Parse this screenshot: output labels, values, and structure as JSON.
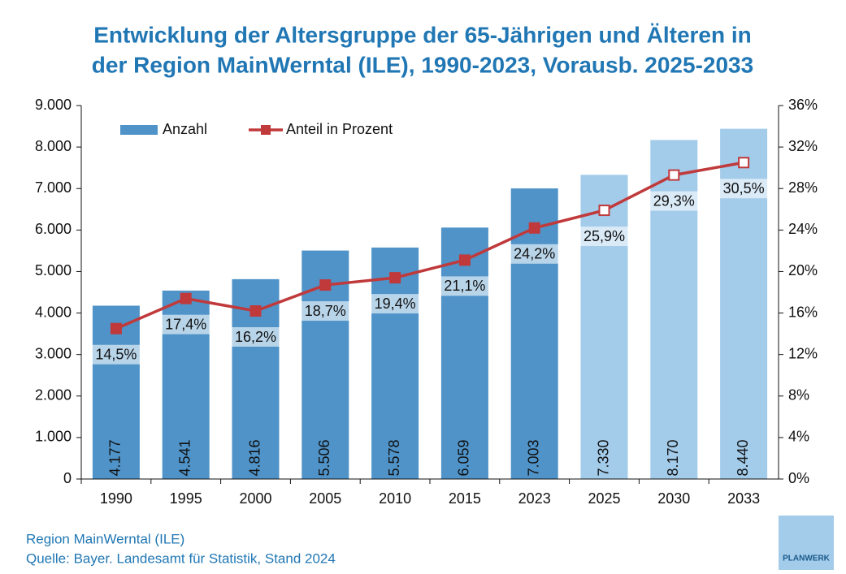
{
  "chart_data": {
    "type": "bar_line",
    "title": [
      "Entwicklung der Altersgruppe der 65-Jährigen und Älteren in",
      "der Region MainWerntal (ILE), 1990-2023, Vorausb. 2025-2033"
    ],
    "categories": [
      "1990",
      "1995",
      "2000",
      "2005",
      "2010",
      "2015",
      "2023",
      "2025",
      "2030",
      "2033"
    ],
    "series": [
      {
        "name": "Anzahl",
        "type": "bar",
        "color": "#4f93c8",
        "colors": [
          "#4f93c8",
          "#4f93c8",
          "#4f93c8",
          "#4f93c8",
          "#4f93c8",
          "#4f93c8",
          "#4f93c8",
          "#a3cbea",
          "#a3cbea",
          "#a3cbea"
        ],
        "values": [
          4177,
          4541,
          4816,
          5506,
          5578,
          6059,
          7003,
          7330,
          8170,
          8440
        ],
        "value_labels": [
          "4.177",
          "4.541",
          "4.816",
          "5.506",
          "5.578",
          "6.059",
          "7.003",
          "7.330",
          "8.170",
          "8.440"
        ]
      },
      {
        "name": "Anteil in Prozent",
        "type": "line",
        "axis": "y2",
        "color": "#c0393b",
        "marker_fills": [
          "#c0393b",
          "#c0393b",
          "#c0393b",
          "#c0393b",
          "#c0393b",
          "#c0393b",
          "#c0393b",
          "#ffffff",
          "#ffffff",
          "#ffffff"
        ],
        "values": [
          14.5,
          17.4,
          16.2,
          18.7,
          19.4,
          21.1,
          24.2,
          25.9,
          29.3,
          30.5
        ],
        "value_labels": [
          "14,5%",
          "17,4%",
          "16,2%",
          "18,7%",
          "19,4%",
          "21,1%",
          "24,2%",
          "25,9%",
          "29,3%",
          "30,5%"
        ]
      }
    ],
    "ylim": [
      0,
      9000
    ],
    "yticks": [
      0,
      {
        "value": 1000,
        "label": "1.000"
      },
      {
        "value": 2000,
        "label": "2.000"
      },
      {
        "value": 3000,
        "label": "3.000"
      },
      {
        "value": 4000,
        "label": "4.000"
      },
      {
        "value": 5000,
        "label": "5.000"
      },
      {
        "value": 6000,
        "label": "6.000"
      },
      {
        "value": 7000,
        "label": "7.000"
      },
      {
        "value": 8000,
        "label": "8.000"
      },
      {
        "value": 9000,
        "label": "9.000"
      }
    ],
    "y2lim": [
      0,
      36
    ],
    "y2ticks": [
      {
        "value": 0,
        "label": "0%"
      },
      {
        "value": 4,
        "label": "4%"
      },
      {
        "value": 8,
        "label": "8%"
      },
      {
        "value": 12,
        "label": "12%"
      },
      {
        "value": 16,
        "label": "16%"
      },
      {
        "value": 20,
        "label": "20%"
      },
      {
        "value": 24,
        "label": "24%"
      },
      {
        "value": 28,
        "label": "28%"
      },
      {
        "value": 32,
        "label": "32%"
      },
      {
        "value": 36,
        "label": "36%"
      }
    ],
    "legend": "upper left",
    "grid": false,
    "footer": [
      "Region MainWerntal (ILE)",
      "Quelle: Bayer. Landesamt für Statistik, Stand 2024"
    ],
    "logo": "PLANWERK"
  }
}
